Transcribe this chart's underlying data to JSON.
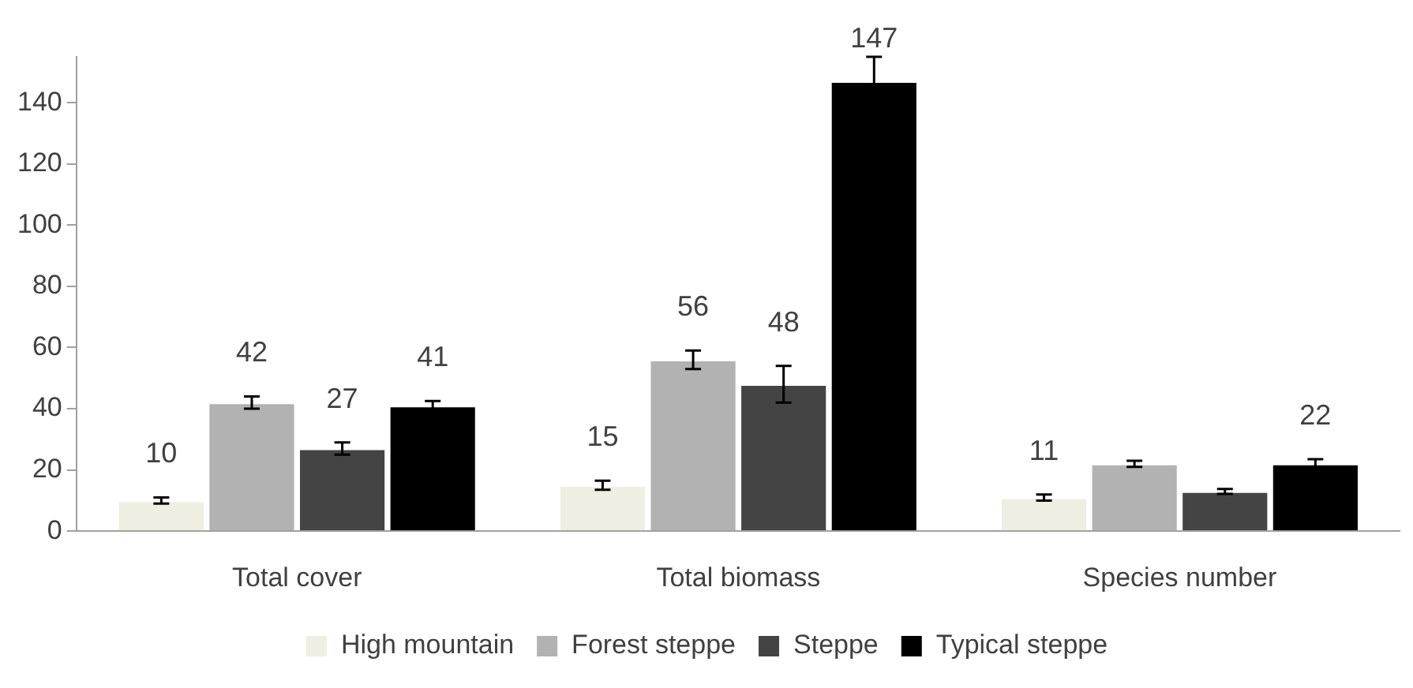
{
  "chart_data": {
    "type": "bar",
    "categories": [
      "Total cover",
      "Total biomass",
      "Species number"
    ],
    "series": [
      {
        "name": "High mountain",
        "color": "#eeeee2",
        "values": [
          10,
          15,
          11
        ],
        "errors": [
          1,
          1.5,
          1
        ],
        "value_labels": [
          "10",
          "15",
          "11"
        ]
      },
      {
        "name": "Forest steppe",
        "color": "#b2b2b2",
        "values": [
          42,
          56,
          22
        ],
        "errors": [
          2,
          3,
          1
        ],
        "value_labels": [
          "42",
          "56",
          null
        ]
      },
      {
        "name": "Steppe",
        "color": "#444444",
        "values": [
          27,
          48,
          13
        ],
        "errors": [
          2,
          6,
          0.8
        ],
        "value_labels": [
          "27",
          "48",
          null
        ]
      },
      {
        "name": "Typical steppe",
        "color": "#000000",
        "values": [
          41,
          147,
          22
        ],
        "errors": [
          1.5,
          8,
          1.5
        ],
        "value_labels": [
          "41",
          "147",
          "22"
        ]
      }
    ],
    "ylim": [
      0,
      155
    ],
    "yticks": [
      0,
      20,
      40,
      60,
      80,
      100,
      120,
      140
    ],
    "grid": false,
    "legend": "bottom"
  }
}
